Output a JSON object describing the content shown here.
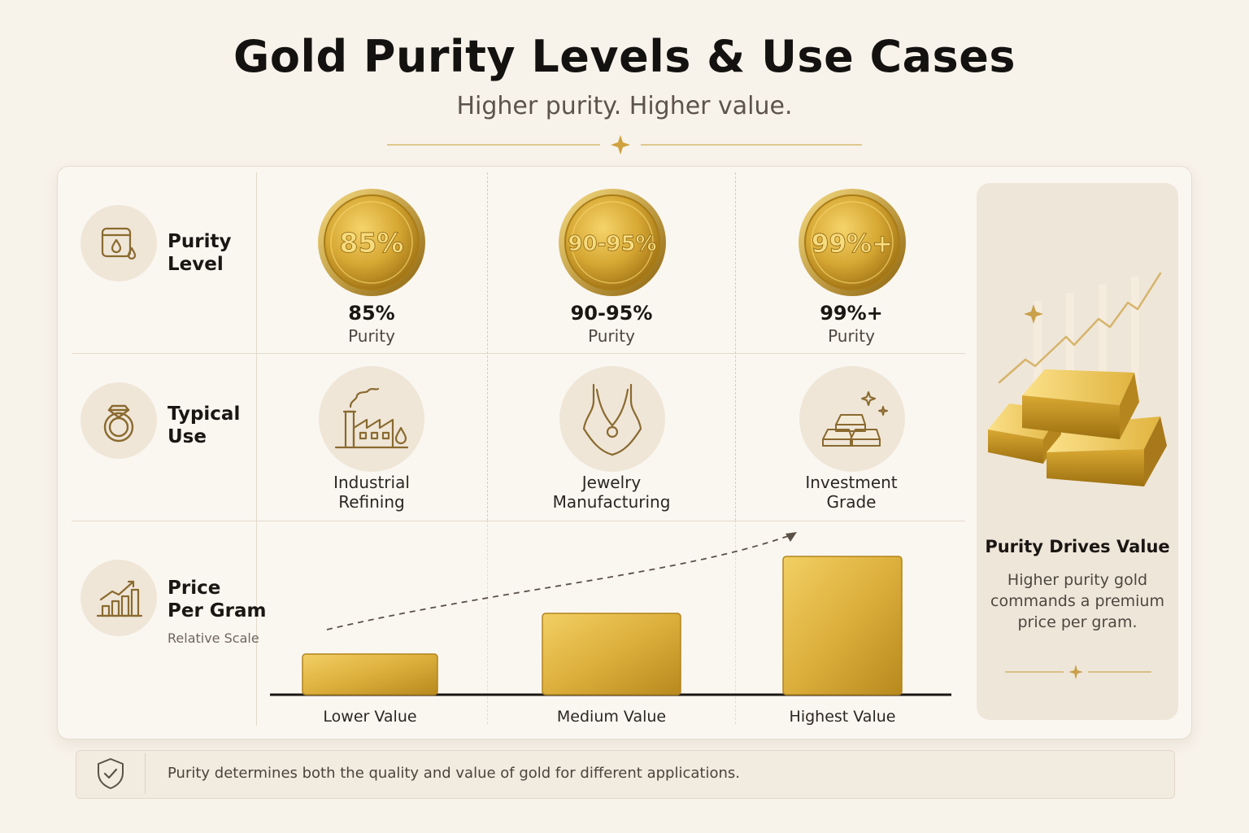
{
  "header": {
    "title": "Gold Purity Levels & Use Cases",
    "subtitle": "Higher purity. Higher value."
  },
  "rows": [
    {
      "icon": "purity-drop-icon",
      "label_line1": "Purity",
      "label_line2": "Level"
    },
    {
      "icon": "ring-icon",
      "label_line1": "Typical",
      "label_line2": "Use"
    },
    {
      "icon": "bar-chart-trend-icon",
      "label_line1": "Price",
      "label_line2": "Per Gram",
      "note": "Relative Scale"
    }
  ],
  "columns": [
    {
      "coin_text": "85%",
      "purity_value": "85%",
      "purity_label": "Purity",
      "use_icon": "factory-icon",
      "use_line1": "Industrial",
      "use_line2": "Refining"
    },
    {
      "coin_text": "90-95%",
      "purity_value": "90-95%",
      "purity_label": "Purity",
      "use_icon": "necklace-icon",
      "use_line1": "Jewelry",
      "use_line2": "Manufacturing"
    },
    {
      "coin_text": "99%+",
      "purity_value": "99%+",
      "purity_label": "Purity",
      "use_icon": "gold-bars-icon",
      "use_line1": "Investment",
      "use_line2": "Grade"
    }
  ],
  "chart_data": {
    "type": "bar",
    "title": "Price Per Gram",
    "ylabel": "Relative Scale",
    "categories": [
      "Lower Value",
      "Medium Value",
      "Highest Value"
    ],
    "values": [
      1,
      2,
      3.4
    ],
    "ylim": [
      0,
      3.6
    ],
    "trend_arrow": true,
    "grid": false
  },
  "side": {
    "icon": "gold-bars-stack-icon",
    "title": "Purity Drives Value",
    "text": "Higher purity gold commands a premium price per gram."
  },
  "footer": {
    "icon": "shield-check-icon",
    "text": "Purity determines both the quality and value of gold for different applications."
  },
  "colors": {
    "background": "#f7f2ea",
    "gold": "#d4a52e",
    "gold_dark": "#a87b14",
    "icon_stroke": "#8a6a2f"
  }
}
